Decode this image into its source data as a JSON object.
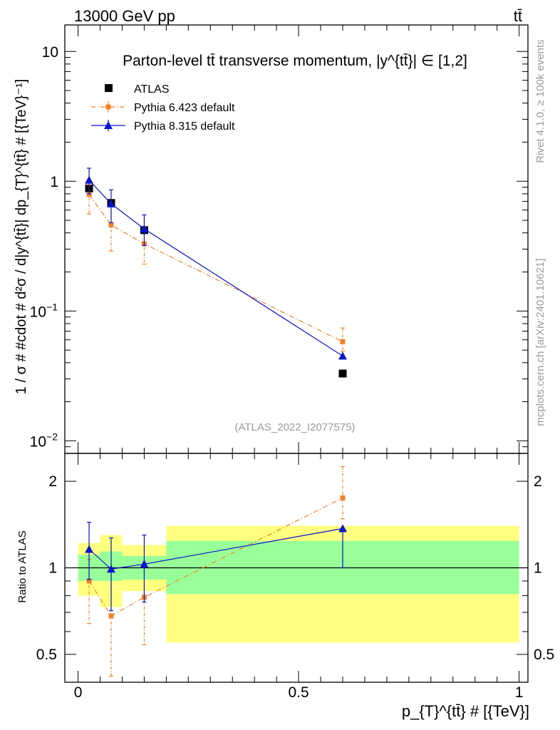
{
  "header": {
    "energy_label": "13000 GeV pp",
    "process_label": "tt̄"
  },
  "side_labels": {
    "rivet": "Rivet 4.1.0, ≥ 100k events",
    "mcplots": "mcplots.cern.ch [arXiv:2401.10621]"
  },
  "chart_data": [
    {
      "type": "line",
      "scale": "log",
      "title": "Parton-level tt̄ transverse momentum, |y^{tt̄}| ∈ [1,2]",
      "ylabel": "1 / σ # #cdot # d²σ / d|y^{tt̄}| dp_{T}^{tt̄} # [{TeV}⁻¹]",
      "xlim": [
        -0.03,
        1.02
      ],
      "ylim": [
        0.008,
        16
      ],
      "yticks": [
        {
          "value": 10,
          "base": "10",
          "exp": ""
        },
        {
          "value": 1,
          "base": "1",
          "exp": ""
        },
        {
          "value": 0.1,
          "base": "10",
          "exp": "−1"
        },
        {
          "value": 0.01,
          "base": "10",
          "exp": "−2"
        }
      ],
      "watermark": "(ATLAS_2022_I2077575)",
      "legend": [
        "ATLAS",
        "Pythia 6.423 default",
        "Pythia 8.315 default"
      ],
      "series": [
        {
          "name": "ATLAS",
          "color": "#000000",
          "marker": "square",
          "x": [
            0.025,
            0.075,
            0.15,
            0.6
          ],
          "y": [
            0.88,
            0.68,
            0.42,
            0.033
          ],
          "yerr_lo": [
            0.88,
            0.68,
            0.42,
            0.033
          ],
          "yerr_hi": [
            0.88,
            0.68,
            0.42,
            0.033
          ]
        },
        {
          "name": "Pythia 6.423 default",
          "color": "#f5822a",
          "marker": "square-small",
          "dash": "dashdot",
          "x": [
            0.025,
            0.075,
            0.15,
            0.6
          ],
          "y": [
            0.79,
            0.46,
            0.33,
            0.058
          ],
          "yerr_lo": [
            0.56,
            0.29,
            0.23,
            0.049
          ],
          "yerr_hi": [
            0.94,
            0.67,
            0.44,
            0.074
          ]
        },
        {
          "name": "Pythia 8.315 default",
          "color": "#0a14c8",
          "marker": "triangle",
          "x": [
            0.025,
            0.075,
            0.15,
            0.6
          ],
          "y": [
            1.02,
            0.67,
            0.43,
            0.045
          ],
          "yerr_lo": [
            0.8,
            0.48,
            0.32,
            0.045
          ],
          "yerr_hi": [
            1.26,
            0.86,
            0.55,
            0.045
          ]
        }
      ]
    },
    {
      "type": "line",
      "scale": "log",
      "ylabel": "Ratio to ATLAS",
      "xlabel": "p_{T}^{tt̄} # [{TeV}]",
      "xlim": [
        -0.03,
        1.02
      ],
      "ylim": [
        0.4,
        2.5
      ],
      "yticks": [
        {
          "value": 2,
          "label": "2"
        },
        {
          "value": 1,
          "label": "1"
        },
        {
          "value": 0.5,
          "label": "0.5"
        }
      ],
      "xticks": [
        {
          "value": 0,
          "label": "0"
        },
        {
          "value": 0.5,
          "label": "0.5"
        },
        {
          "value": 1,
          "label": "1"
        }
      ],
      "bands": [
        {
          "x0": 0,
          "x1": 0.05,
          "stat_lo": 0.9,
          "stat_hi": 1.11,
          "tot_lo": 0.8,
          "tot_hi": 1.22
        },
        {
          "x0": 0.05,
          "x1": 0.1,
          "stat_lo": 0.9,
          "stat_hi": 1.14,
          "tot_lo": 0.73,
          "tot_hi": 1.3
        },
        {
          "x0": 0.1,
          "x1": 0.2,
          "stat_lo": 0.91,
          "stat_hi": 1.1,
          "tot_lo": 0.83,
          "tot_hi": 1.2
        },
        {
          "x0": 0.2,
          "x1": 1.0,
          "stat_lo": 0.81,
          "stat_hi": 1.24,
          "tot_lo": 0.55,
          "tot_hi": 1.4
        }
      ],
      "series": [
        {
          "name": "Pythia 6.423 default",
          "color": "#f5822a",
          "x": [
            0.025,
            0.075,
            0.15,
            0.6
          ],
          "y": [
            0.9,
            0.68,
            0.79,
            1.75
          ],
          "yerr_lo": [
            0.64,
            0.42,
            0.54,
            1.48
          ],
          "yerr_hi": [
            1.07,
            0.98,
            1.05,
            2.25
          ]
        },
        {
          "name": "Pythia 8.315 default",
          "color": "#0a14c8",
          "x": [
            0.025,
            0.075,
            0.15,
            0.6
          ],
          "y": [
            1.16,
            0.99,
            1.03,
            1.37
          ],
          "yerr_lo": [
            0.91,
            0.71,
            0.76,
            1.0
          ],
          "yerr_hi": [
            1.44,
            1.27,
            1.3,
            1.37
          ]
        }
      ]
    }
  ]
}
